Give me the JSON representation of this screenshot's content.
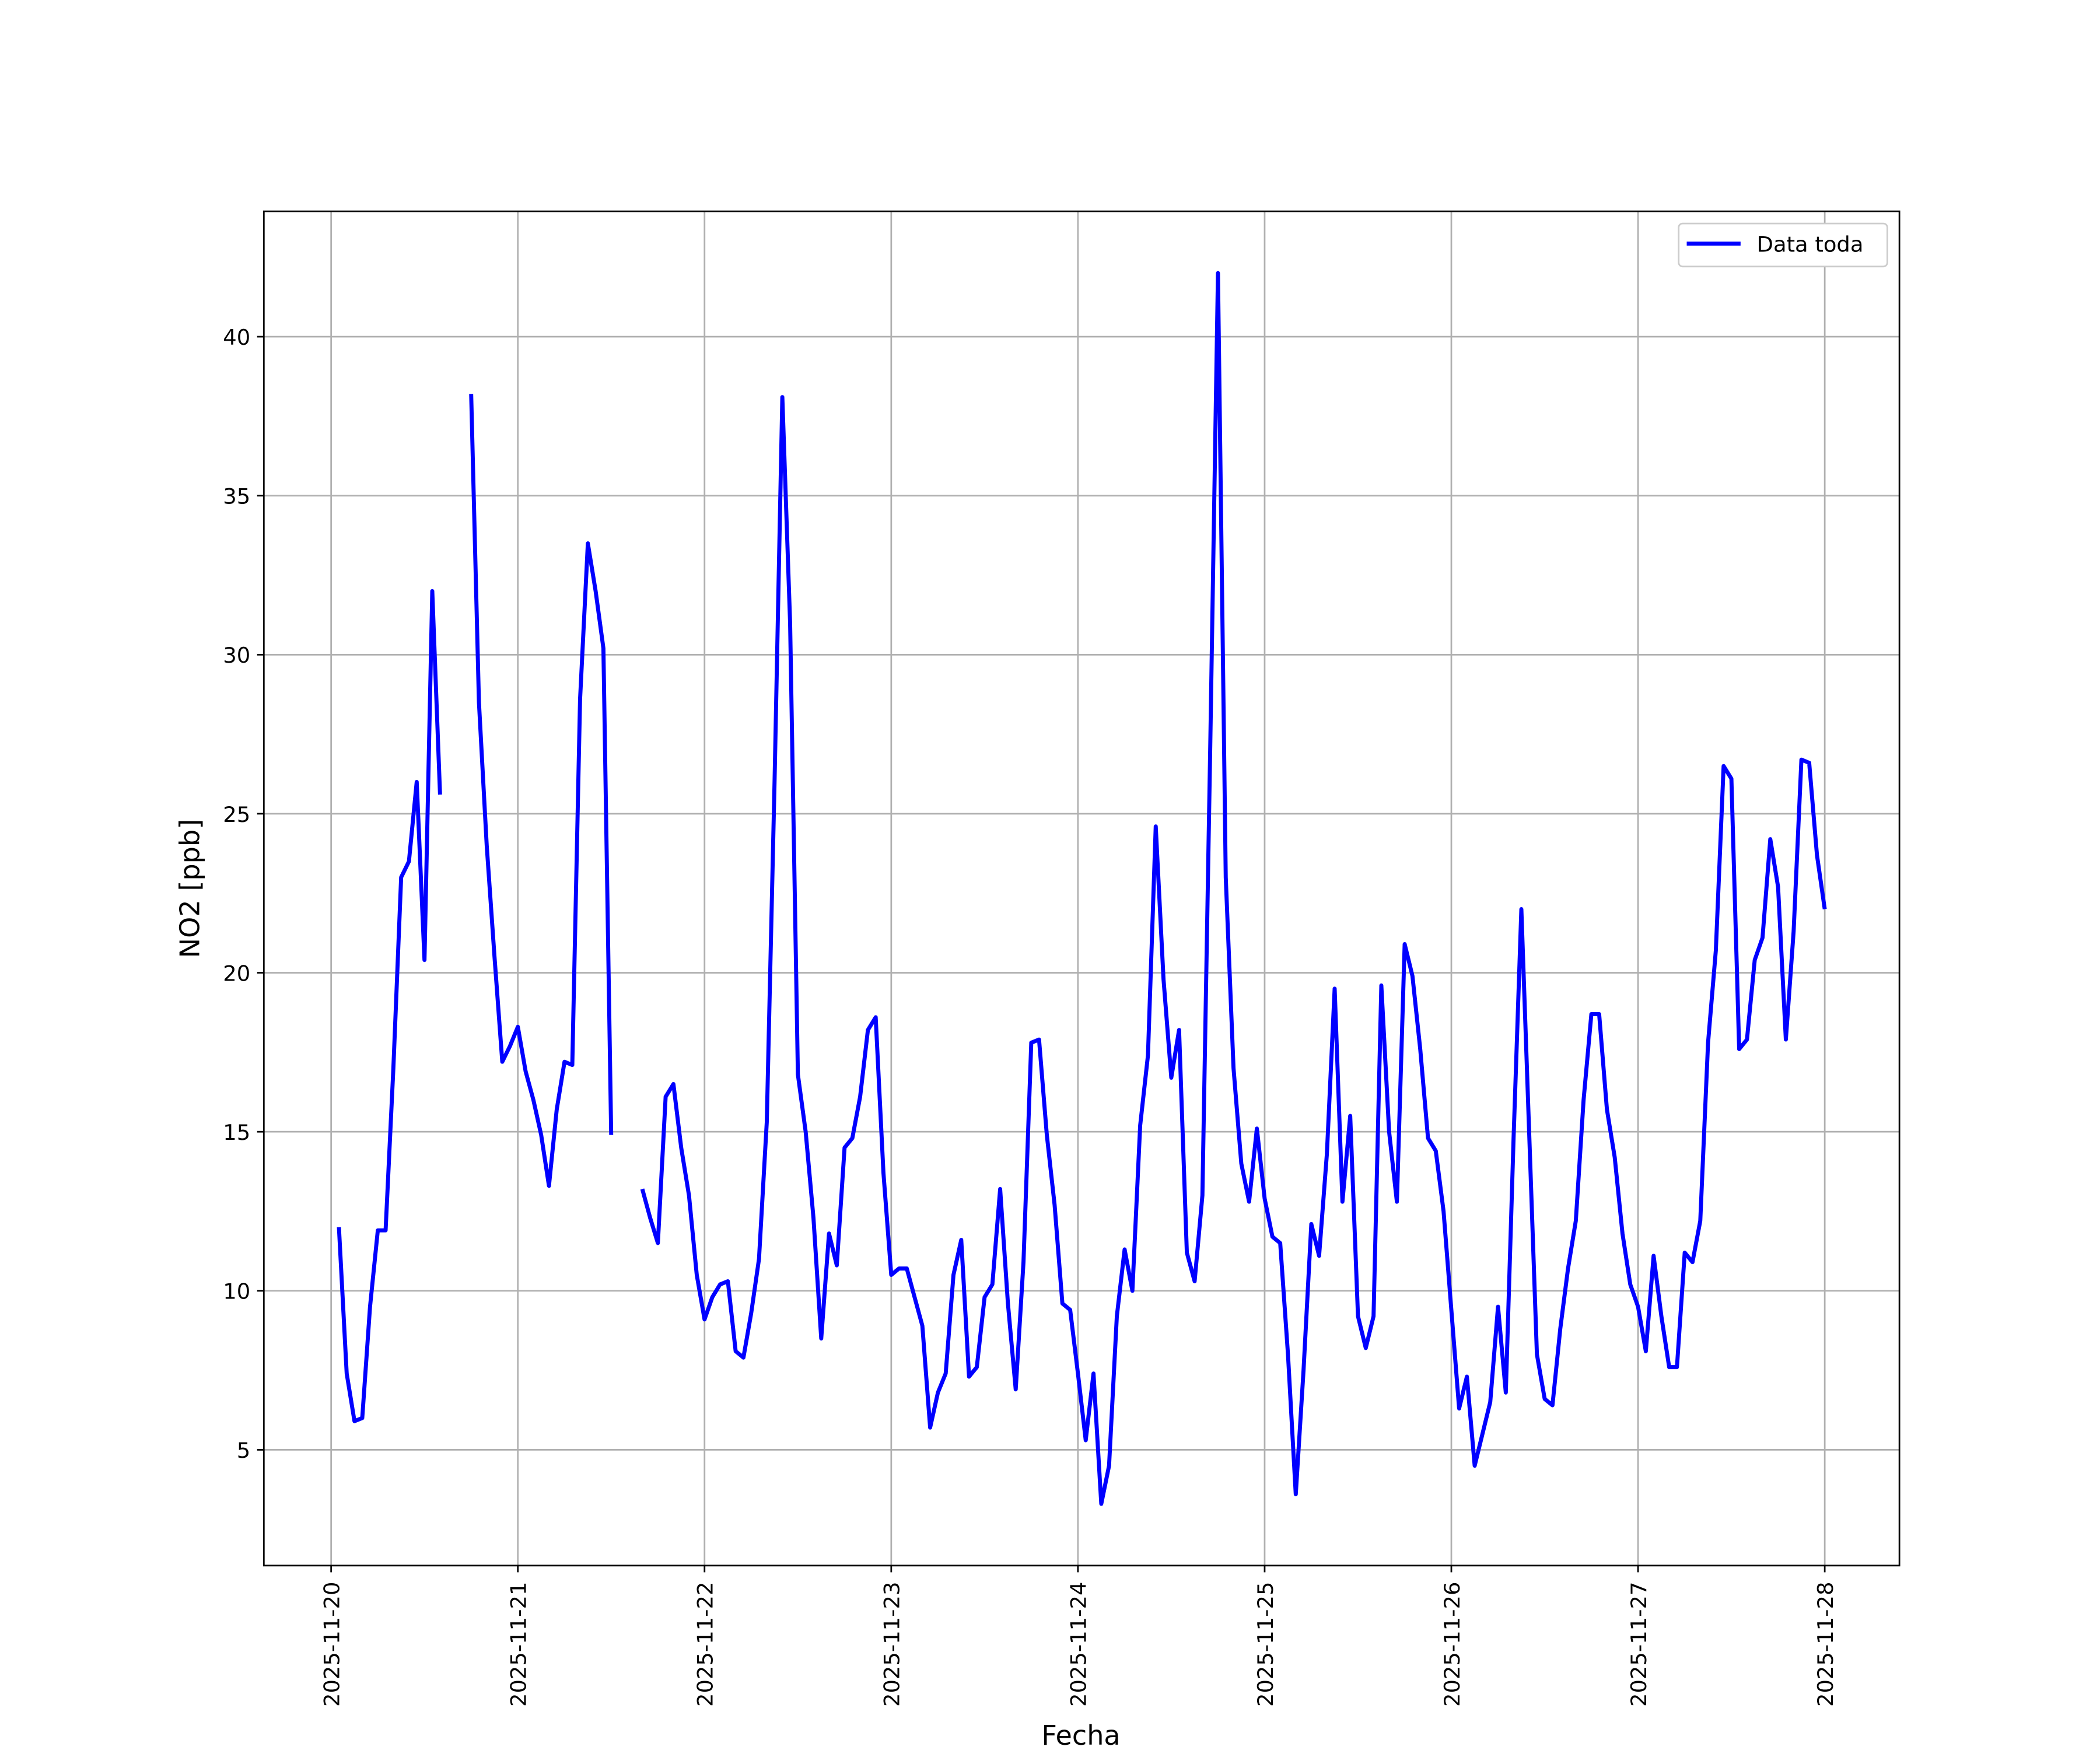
{
  "chart_data": {
    "type": "line",
    "xlabel": "Fecha",
    "ylabel": "NO2 [ppb]",
    "x": [
      1,
      2,
      3,
      4,
      5,
      6,
      7,
      8,
      9,
      10,
      11,
      12,
      13,
      14,
      15,
      16,
      17,
      18,
      19,
      20,
      21,
      22,
      23,
      24,
      25,
      26,
      27,
      28,
      29,
      30,
      31,
      32,
      33,
      34,
      35,
      36,
      37,
      38,
      39,
      40,
      41,
      42,
      43,
      44,
      45,
      46,
      47,
      48,
      49,
      50,
      51,
      52,
      53,
      54,
      55,
      56,
      57,
      58,
      59,
      60,
      61,
      62,
      63,
      64,
      65,
      66,
      67,
      68,
      69,
      70,
      71,
      72,
      73,
      74,
      75,
      76,
      77,
      78,
      79,
      80,
      81,
      82,
      83,
      84,
      85,
      86,
      87,
      88,
      89,
      90,
      91,
      92,
      93,
      94,
      95,
      96,
      97,
      98,
      99,
      100,
      101,
      102,
      103,
      104,
      105,
      106,
      107,
      108,
      109,
      110,
      111,
      112,
      113,
      114,
      115,
      116,
      117,
      118,
      119,
      120,
      121,
      122,
      123,
      124,
      125,
      126,
      127,
      128,
      129,
      130,
      131,
      132,
      133,
      134,
      135,
      136,
      137,
      138,
      139,
      140,
      141,
      142,
      143,
      144,
      145,
      146,
      147,
      148,
      149,
      150,
      151,
      152,
      153,
      154,
      155,
      156,
      157,
      158,
      159,
      160,
      161,
      162,
      163,
      164,
      165,
      166,
      167,
      168,
      169,
      170,
      171,
      172,
      173,
      174,
      175,
      176,
      177,
      178,
      179,
      180,
      181,
      182,
      183,
      184,
      185,
      186,
      187,
      188,
      189,
      190,
      191,
      192
    ],
    "series": [
      {
        "name": "Data toda",
        "color": "#0000ff",
        "values": [
          12.0,
          7.4,
          5.9,
          6.0,
          9.5,
          11.9,
          11.9,
          17.0,
          23.0,
          23.5,
          26.0,
          20.4,
          32.0,
          25.6,
          null,
          null,
          null,
          38.2,
          28.5,
          24.0,
          20.5,
          17.2,
          17.7,
          18.3,
          16.9,
          16.0,
          14.9,
          13.3,
          15.7,
          17.2,
          17.1,
          28.6,
          33.5,
          32.0,
          30.2,
          14.9,
          null,
          null,
          null,
          13.2,
          12.3,
          11.5,
          16.1,
          16.5,
          14.5,
          13.0,
          10.5,
          9.1,
          9.8,
          10.2,
          10.3,
          8.1,
          7.9,
          9.3,
          11.0,
          15.3,
          26.0,
          38.1,
          31.0,
          16.8,
          15.0,
          12.3,
          8.5,
          11.8,
          10.8,
          14.5,
          14.8,
          16.1,
          18.2,
          18.6,
          13.7,
          10.5,
          10.7,
          10.7,
          9.8,
          8.9,
          5.7,
          6.8,
          7.4,
          10.5,
          11.6,
          7.3,
          7.6,
          9.8,
          10.2,
          13.2,
          9.6,
          6.9,
          10.9,
          17.8,
          17.9,
          14.9,
          12.7,
          9.6,
          9.4,
          7.4,
          5.3,
          7.4,
          3.3,
          4.5,
          9.2,
          11.3,
          10.0,
          15.2,
          17.4,
          24.6,
          19.8,
          16.7,
          18.2,
          11.2,
          10.3,
          13.0,
          27.0,
          42.0,
          23.0,
          17.0,
          14.0,
          12.8,
          15.1,
          12.9,
          11.7,
          11.5,
          8.0,
          3.6,
          7.5,
          12.1,
          11.1,
          14.3,
          19.5,
          12.8,
          15.5,
          9.2,
          8.2,
          9.2,
          19.6,
          15.0,
          12.8,
          20.9,
          19.9,
          17.6,
          14.8,
          14.4,
          12.5,
          9.4,
          6.3,
          7.3,
          4.5,
          5.5,
          6.5,
          9.5,
          6.8,
          14.8,
          22.0,
          15.0,
          8.0,
          6.6,
          6.4,
          8.8,
          10.7,
          12.2,
          16.0,
          18.7,
          18.7,
          15.7,
          14.2,
          11.8,
          10.2,
          9.5,
          8.1,
          11.1,
          9.2,
          7.6,
          7.6,
          11.2,
          10.9,
          12.2,
          17.8,
          20.7,
          26.5,
          26.1,
          17.6,
          17.9,
          20.4,
          21.1,
          24.2,
          22.7,
          17.9,
          21.3,
          26.7,
          26.6,
          23.7,
          22.0
        ]
      }
    ],
    "xlim": [
      -8.65,
      201.6
    ],
    "xticks": [
      {
        "value": 0,
        "label": "2025-11-20"
      },
      {
        "value": 24,
        "label": "2025-11-21"
      },
      {
        "value": 48,
        "label": "2025-11-22"
      },
      {
        "value": 72,
        "label": "2025-11-23"
      },
      {
        "value": 96,
        "label": "2025-11-24"
      },
      {
        "value": 120,
        "label": "2025-11-25"
      },
      {
        "value": 144,
        "label": "2025-11-26"
      },
      {
        "value": 168,
        "label": "2025-11-27"
      },
      {
        "value": 192,
        "label": "2025-11-28"
      }
    ],
    "ylim": [
      1.36,
      43.94
    ],
    "yticks": [
      5,
      10,
      15,
      20,
      25,
      30,
      35,
      40
    ],
    "grid": true,
    "legend": "upper right"
  }
}
